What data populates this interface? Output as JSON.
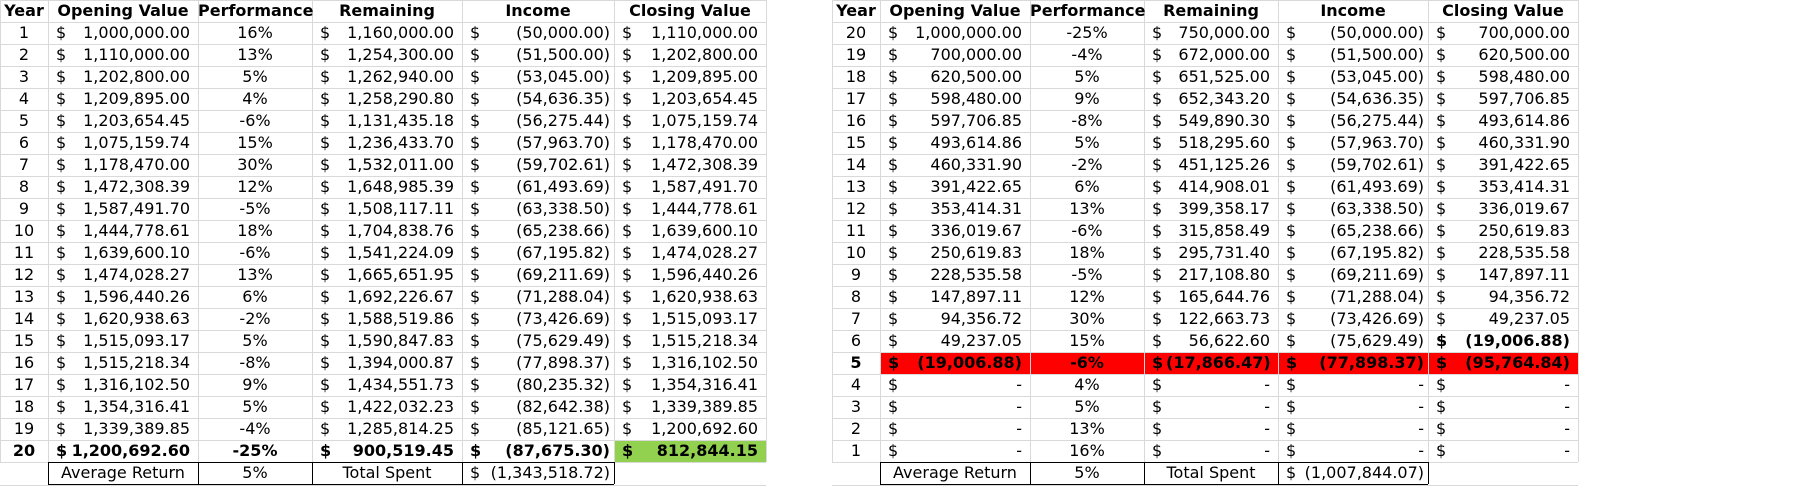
{
  "headers": [
    "Year",
    "Opening Value",
    "Performance",
    "Remaining",
    "Income",
    "Closing Value"
  ],
  "left_table": {
    "rows": [
      [
        "1",
        "1,000,000.00",
        "16%",
        "1,160,000.00",
        "(50,000.00)",
        "1,110,000.00"
      ],
      [
        "2",
        "1,110,000.00",
        "13%",
        "1,254,300.00",
        "(51,500.00)",
        "1,202,800.00"
      ],
      [
        "3",
        "1,202,800.00",
        "5%",
        "1,262,940.00",
        "(53,045.00)",
        "1,209,895.00"
      ],
      [
        "4",
        "1,209,895.00",
        "4%",
        "1,258,290.80",
        "(54,636.35)",
        "1,203,654.45"
      ],
      [
        "5",
        "1,203,654.45",
        "-6%",
        "1,131,435.18",
        "(56,275.44)",
        "1,075,159.74"
      ],
      [
        "6",
        "1,075,159.74",
        "15%",
        "1,236,433.70",
        "(57,963.70)",
        "1,178,470.00"
      ],
      [
        "7",
        "1,178,470.00",
        "30%",
        "1,532,011.00",
        "(59,702.61)",
        "1,472,308.39"
      ],
      [
        "8",
        "1,472,308.39",
        "12%",
        "1,648,985.39",
        "(61,493.69)",
        "1,587,491.70"
      ],
      [
        "9",
        "1,587,491.70",
        "-5%",
        "1,508,117.11",
        "(63,338.50)",
        "1,444,778.61"
      ],
      [
        "10",
        "1,444,778.61",
        "18%",
        "1,704,838.76",
        "(65,238.66)",
        "1,639,600.10"
      ],
      [
        "11",
        "1,639,600.10",
        "-6%",
        "1,541,224.09",
        "(67,195.82)",
        "1,474,028.27"
      ],
      [
        "12",
        "1,474,028.27",
        "13%",
        "1,665,651.95",
        "(69,211.69)",
        "1,596,440.26"
      ],
      [
        "13",
        "1,596,440.26",
        "6%",
        "1,692,226.67",
        "(71,288.04)",
        "1,620,938.63"
      ],
      [
        "14",
        "1,620,938.63",
        "-2%",
        "1,588,519.86",
        "(73,426.69)",
        "1,515,093.17"
      ],
      [
        "15",
        "1,515,093.17",
        "5%",
        "1,590,847.83",
        "(75,629.49)",
        "1,515,218.34"
      ],
      [
        "16",
        "1,515,218.34",
        "-8%",
        "1,394,000.87",
        "(77,898.37)",
        "1,316,102.50"
      ],
      [
        "17",
        "1,316,102.50",
        "9%",
        "1,434,551.73",
        "(80,235.32)",
        "1,354,316.41"
      ],
      [
        "18",
        "1,354,316.41",
        "5%",
        "1,422,032.23",
        "(82,642.38)",
        "1,339,389.85"
      ],
      [
        "19",
        "1,339,389.85",
        "-4%",
        "1,285,814.25",
        "(85,121.65)",
        "1,200,692.60"
      ],
      [
        "20",
        "1,200,692.60",
        "-25%",
        "900,519.45",
        "(87,675.30)",
        "812,844.15"
      ]
    ],
    "summary": {
      "avg_label": "Average Return",
      "avg_value": "5%",
      "spent_label": "Total Spent",
      "spent_value": "(1,343,518.72)"
    },
    "highlight_color": "#92d050"
  },
  "right_table": {
    "rows": [
      [
        "20",
        "1,000,000.00",
        "-25%",
        "750,000.00",
        "(50,000.00)",
        "700,000.00"
      ],
      [
        "19",
        "700,000.00",
        "-4%",
        "672,000.00",
        "(51,500.00)",
        "620,500.00"
      ],
      [
        "18",
        "620,500.00",
        "5%",
        "651,525.00",
        "(53,045.00)",
        "598,480.00"
      ],
      [
        "17",
        "598,480.00",
        "9%",
        "652,343.20",
        "(54,636.35)",
        "597,706.85"
      ],
      [
        "16",
        "597,706.85",
        "-8%",
        "549,890.30",
        "(56,275.44)",
        "493,614.86"
      ],
      [
        "15",
        "493,614.86",
        "5%",
        "518,295.60",
        "(57,963.70)",
        "460,331.90"
      ],
      [
        "14",
        "460,331.90",
        "-2%",
        "451,125.26",
        "(59,702.61)",
        "391,422.65"
      ],
      [
        "13",
        "391,422.65",
        "6%",
        "414,908.01",
        "(61,493.69)",
        "353,414.31"
      ],
      [
        "12",
        "353,414.31",
        "13%",
        "399,358.17",
        "(63,338.50)",
        "336,019.67"
      ],
      [
        "11",
        "336,019.67",
        "-6%",
        "315,858.49",
        "(65,238.66)",
        "250,619.83"
      ],
      [
        "10",
        "250,619.83",
        "18%",
        "295,731.40",
        "(67,195.82)",
        "228,535.58"
      ],
      [
        "9",
        "228,535.58",
        "-5%",
        "217,108.80",
        "(69,211.69)",
        "147,897.11"
      ],
      [
        "8",
        "147,897.11",
        "12%",
        "165,644.76",
        "(71,288.04)",
        "94,356.72"
      ],
      [
        "7",
        "94,356.72",
        "30%",
        "122,663.73",
        "(73,426.69)",
        "49,237.05"
      ],
      [
        "6",
        "49,237.05",
        "15%",
        "56,622.60",
        "(75,629.49)",
        "(19,006.88)"
      ],
      [
        "5",
        "(19,006.88)",
        "-6%",
        "(17,866.47)",
        "(77,898.37)",
        "(95,764.84)"
      ],
      [
        "4",
        "-",
        "4%",
        "-",
        "-",
        "-"
      ],
      [
        "3",
        "-",
        "5%",
        "-",
        "-",
        "-"
      ],
      [
        "2",
        "-",
        "13%",
        "-",
        "-",
        "-"
      ],
      [
        "1",
        "-",
        "16%",
        "-",
        "-",
        "-"
      ]
    ],
    "summary": {
      "avg_label": "Average Return",
      "avg_value": "5%",
      "spent_label": "Total Spent",
      "spent_value": "(1,007,844.07)"
    },
    "highlight_color": "#ff0000"
  },
  "currency_symbol": "$"
}
